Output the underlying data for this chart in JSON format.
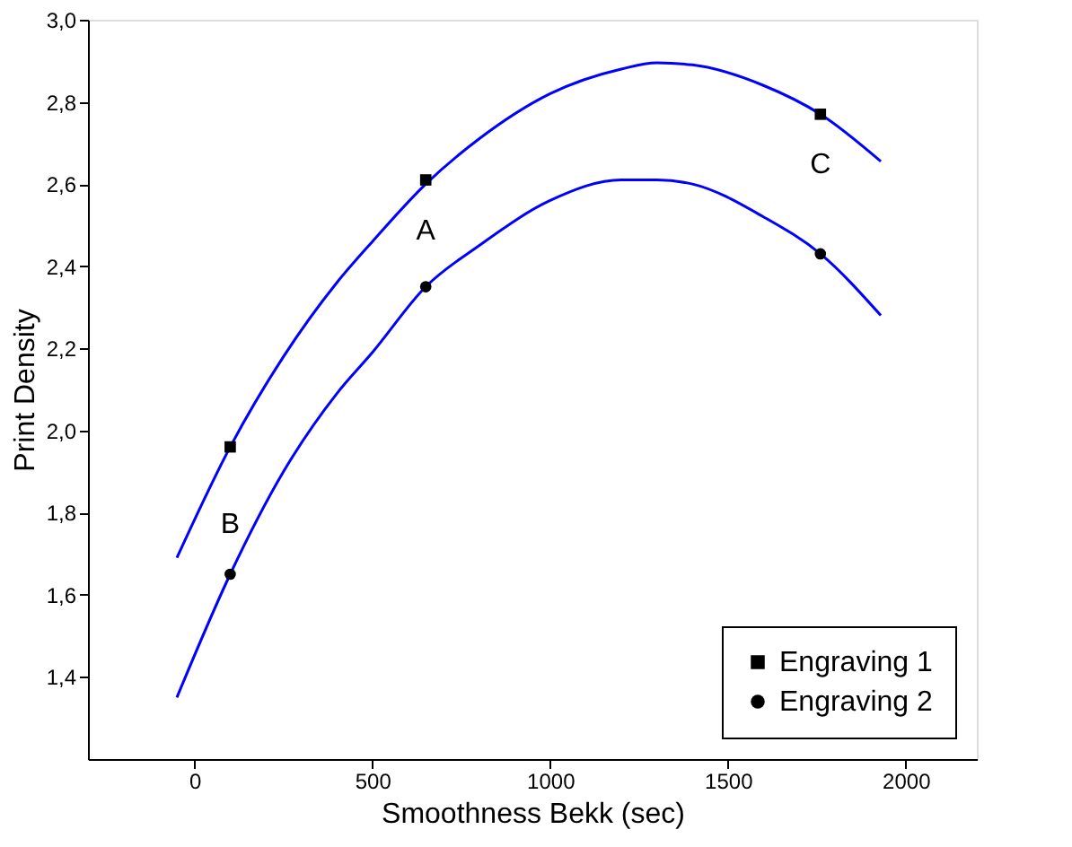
{
  "chart_data": {
    "type": "scatter",
    "xlabel": "Smoothness Bekk (sec)",
    "ylabel": "Print Density",
    "xlim": [
      -300,
      2200
    ],
    "xticks": [
      0,
      500,
      1000,
      1500,
      2000
    ],
    "ylim": [
      1.2,
      3.0
    ],
    "yticks": [
      {
        "value": 1.4,
        "label": "1,4"
      },
      {
        "value": 1.6,
        "label": "1,6"
      },
      {
        "value": 1.8,
        "label": "1,8"
      },
      {
        "value": 2.0,
        "label": "2,0"
      },
      {
        "value": 2.2,
        "label": "2,2"
      },
      {
        "value": 2.4,
        "label": "2,4"
      },
      {
        "value": 2.6,
        "label": "2,6"
      },
      {
        "value": 2.8,
        "label": "2,8"
      },
      {
        "value": 3.0,
        "label": "3,0"
      }
    ],
    "grid": false,
    "legend": "bottom right",
    "series": [
      {
        "type": "line",
        "color": "#0000ff",
        "x": [
          -50,
          100,
          250,
          400,
          500,
          650,
          800,
          1000,
          1200,
          1300,
          1400,
          1600,
          1760,
          1930
        ],
        "values": [
          1.69,
          1.96,
          2.18,
          2.36,
          2.46,
          2.6,
          2.71,
          2.82,
          2.88,
          2.895,
          2.89,
          2.84,
          2.77,
          2.655
        ]
      },
      {
        "type": "line",
        "color": "#0000ff",
        "x": [
          -50,
          100,
          250,
          400,
          500,
          650,
          800,
          1000,
          1200,
          1300,
          1400,
          1600,
          1760,
          1930
        ],
        "values": [
          1.35,
          1.65,
          1.9,
          2.09,
          2.19,
          2.35,
          2.45,
          2.56,
          2.61,
          2.61,
          2.6,
          2.52,
          2.43,
          2.28
        ]
      },
      {
        "name": "Engraving 1",
        "color": "#000000",
        "marker": "square",
        "x": [
          100,
          650,
          1760
        ],
        "values": [
          1.96,
          2.61,
          2.77
        ]
      },
      {
        "name": "Engraving 2",
        "color": "#000000",
        "marker": "circle",
        "x": [
          100,
          650,
          1760
        ],
        "values": [
          1.65,
          2.35,
          2.43
        ]
      }
    ],
    "annotations": [
      {
        "text": "A",
        "x": 650,
        "y": 2.61
      },
      {
        "text": "B",
        "x": 100,
        "y": 1.65
      },
      {
        "text": "C",
        "x": 1760,
        "y": 2.77
      }
    ]
  }
}
